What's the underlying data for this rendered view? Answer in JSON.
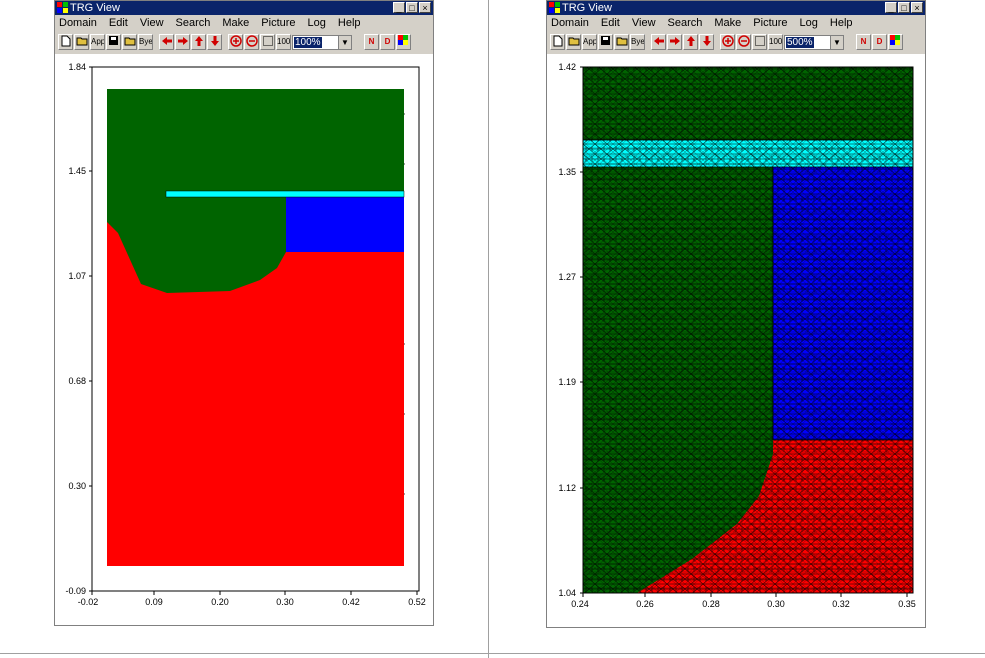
{
  "left_window": {
    "title": "TRG View",
    "menu": [
      "Domain",
      "Edit",
      "View",
      "Search",
      "Make",
      "Picture",
      "Log",
      "Help"
    ],
    "toolbar_text_buttons": {
      "app": "App",
      "bye": "Bye",
      "hundred": "100",
      "n": "N",
      "d": "D"
    },
    "zoom": "100%",
    "axes": {
      "y_ticks": [
        "1.84",
        "1.45",
        "1.07",
        "0.68",
        "0.30",
        "-0.09"
      ],
      "x_ticks": [
        "-0.02",
        "0.09",
        "0.20",
        "0.30",
        "0.42",
        "0.52"
      ]
    },
    "colors": {
      "oxide": "#006400",
      "substrate": "#ff0000",
      "gate": "#00ffff",
      "drain": "#0000ff"
    }
  },
  "right_window": {
    "title": "TRG View",
    "menu": [
      "Domain",
      "Edit",
      "View",
      "Search",
      "Make",
      "Picture",
      "Log",
      "Help"
    ],
    "toolbar_text_buttons": {
      "app": "App",
      "bye": "Bye",
      "hundred": "100",
      "n": "N",
      "d": "D"
    },
    "zoom": "500%",
    "axes": {
      "y_ticks": [
        "1.42",
        "1.35",
        "1.27",
        "1.19",
        "1.12",
        "1.04"
      ],
      "x_ticks": [
        "0.24",
        "0.26",
        "0.28",
        "0.30",
        "0.32",
        "0.35"
      ]
    },
    "colors": {
      "oxide": "#006400",
      "substrate": "#ff0000",
      "gate": "#00ffff",
      "drain": "#0000ff",
      "mesh": "#000000"
    }
  }
}
